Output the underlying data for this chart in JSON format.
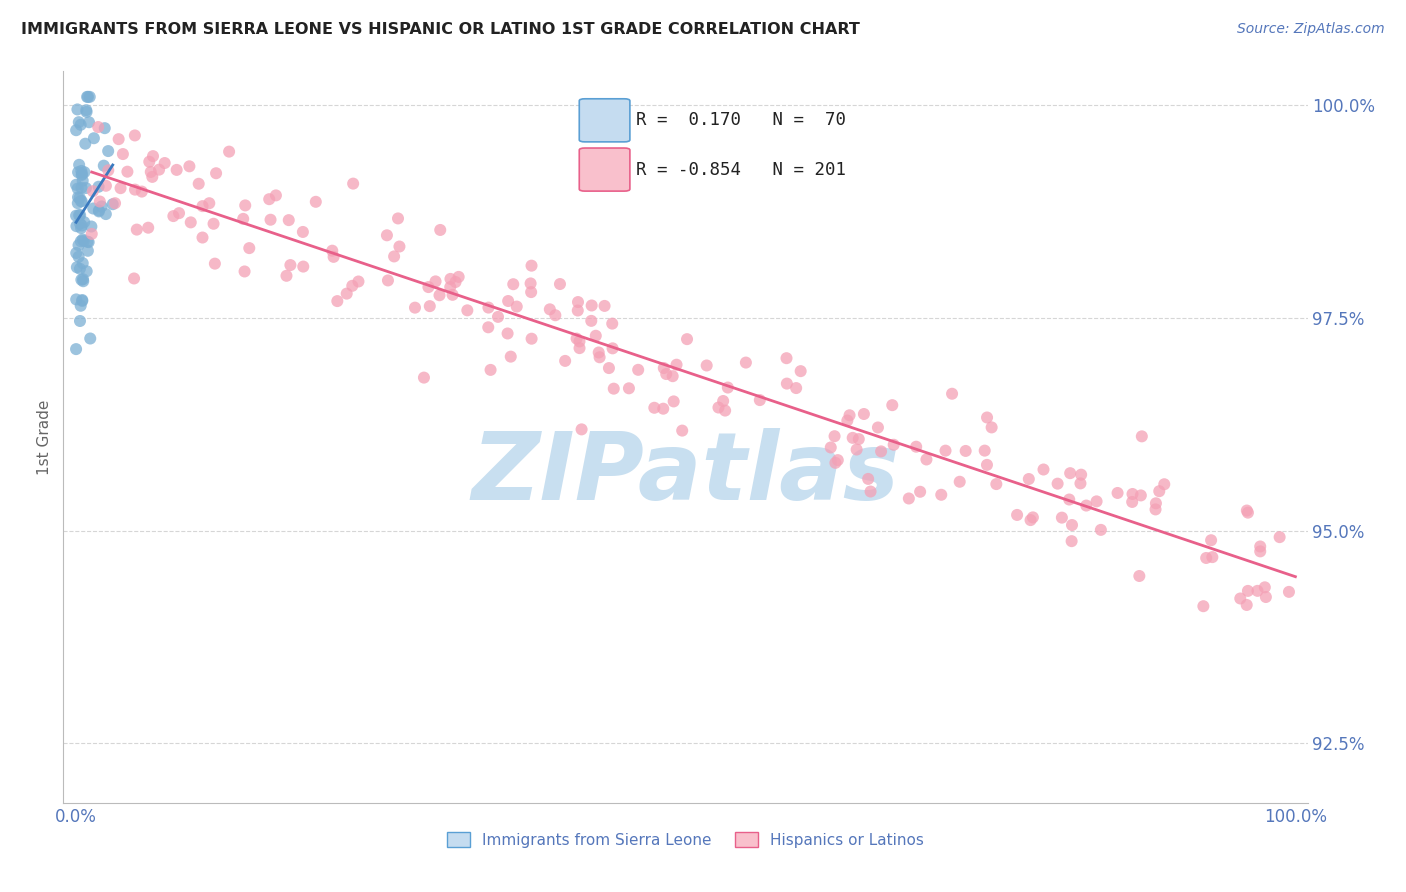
{
  "title": "IMMIGRANTS FROM SIERRA LEONE VS HISPANIC OR LATINO 1ST GRADE CORRELATION CHART",
  "source": "Source: ZipAtlas.com",
  "ylabel": "1st Grade",
  "x_tick_labels": [
    "0.0%",
    "100.0%"
  ],
  "y_tick_labels": [
    "92.5%",
    "95.0%",
    "97.5%",
    "100.0%"
  ],
  "ytick_vals": [
    0.925,
    0.95,
    0.975,
    1.0
  ],
  "y_min": 0.918,
  "y_max": 1.004,
  "x_min": -0.01,
  "x_max": 1.01,
  "blue_R": 0.17,
  "blue_N": 70,
  "pink_R": -0.854,
  "pink_N": 201,
  "blue_color": "#7bafd4",
  "pink_color": "#f4a0b5",
  "blue_line_color": "#3a7abf",
  "pink_line_color": "#e8608a",
  "legend_box_blue_face": "#c5dcf0",
  "legend_box_blue_edge": "#5a9fd4",
  "legend_box_pink_face": "#f9c0cc",
  "legend_box_pink_edge": "#e8608a",
  "watermark_color": "#c8dff0",
  "background_color": "#ffffff",
  "grid_color": "#cccccc",
  "tick_label_color": "#5577bb",
  "ylabel_color": "#666666",
  "title_color": "#222222",
  "source_color": "#5577bb"
}
